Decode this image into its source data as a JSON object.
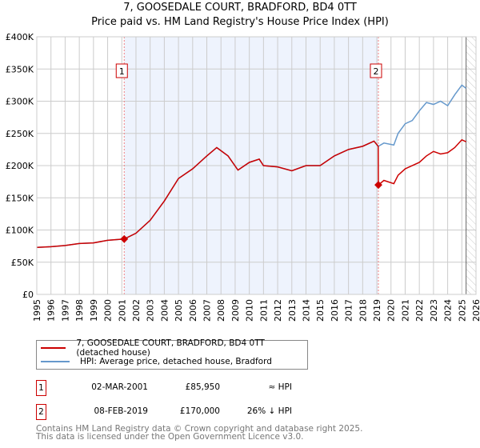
{
  "chart_data": {
    "type": "line",
    "title": "7, GOOSEDALE COURT, BRADFORD, BD4 0TT",
    "subtitle": "Price paid vs. HM Land Registry's House Price Index (HPI)",
    "xlim": [
      1995,
      2026
    ],
    "ylim": [
      0,
      400000
    ],
    "yticks": [
      0,
      50000,
      100000,
      150000,
      200000,
      250000,
      300000,
      350000,
      400000
    ],
    "ytick_labels": [
      "£0",
      "£50K",
      "£100K",
      "£150K",
      "£200K",
      "£250K",
      "£300K",
      "£350K",
      "£400K"
    ],
    "xticks": [
      "1995",
      "1996",
      "1997",
      "1998",
      "1999",
      "2000",
      "2001",
      "2002",
      "2003",
      "2004",
      "2005",
      "2006",
      "2007",
      "2008",
      "2009",
      "2010",
      "2011",
      "2012",
      "2013",
      "2014",
      "2015",
      "2016",
      "2017",
      "2018",
      "2019",
      "2020",
      "2021",
      "2022",
      "2023",
      "2024",
      "2025",
      "2026"
    ],
    "series": [
      {
        "name": "7, GOOSEDALE COURT, BRADFORD, BD4 0TT (detached house)",
        "color": "#cc0000",
        "x": [
          1995,
          1996,
          1997,
          1998,
          1999,
          2000,
          2001.17,
          2002,
          2003,
          2004,
          2005,
          2006,
          2007,
          2007.7,
          2008.5,
          2009.2,
          2010,
          2010.7,
          2011,
          2012,
          2013,
          2014,
          2015,
          2016,
          2017,
          2018,
          2018.8,
          2019.1,
          2019.11,
          2019.5,
          2020.2,
          2020.5,
          2021,
          2022,
          2022.5,
          2023,
          2023.5,
          2024,
          2024.5,
          2025,
          2025.3
        ],
        "y": [
          73000,
          74000,
          76000,
          79000,
          80000,
          84000,
          85950,
          95000,
          115000,
          145000,
          180000,
          195000,
          215000,
          228000,
          215000,
          193000,
          205000,
          210000,
          200000,
          198000,
          192000,
          200000,
          200000,
          215000,
          225000,
          230000,
          238000,
          230000,
          170000,
          177000,
          172000,
          185000,
          195000,
          205000,
          215000,
          222000,
          218000,
          220000,
          228000,
          240000,
          237000
        ]
      },
      {
        "name": "HPI: Average price, detached house, Bradford",
        "color": "#6699cc",
        "x": [
          1995,
          1996,
          1997,
          1998,
          1999,
          2000,
          2001.17,
          2002,
          2003,
          2004,
          2005,
          2006,
          2007,
          2007.7,
          2008.5,
          2009.2,
          2010,
          2010.7,
          2011,
          2012,
          2013,
          2014,
          2015,
          2016,
          2017,
          2018,
          2018.8,
          2019.1,
          2019.5,
          2020.2,
          2020.5,
          2021,
          2021.5,
          2022,
          2022.5,
          2023,
          2023.5,
          2024,
          2024.5,
          2025,
          2025.3
        ],
        "y": [
          73000,
          74000,
          76000,
          79000,
          80000,
          84000,
          86000,
          95000,
          115000,
          145000,
          180000,
          195000,
          215000,
          228000,
          215000,
          193000,
          205000,
          210000,
          200000,
          198000,
          192000,
          200000,
          200000,
          215000,
          225000,
          230000,
          238000,
          230000,
          235000,
          232000,
          250000,
          265000,
          270000,
          285000,
          298000,
          295000,
          300000,
          293000,
          310000,
          325000,
          320000
        ]
      }
    ],
    "sales": [
      {
        "label": "1",
        "x": 2001.17,
        "y": 85950
      },
      {
        "label": "2",
        "x": 2019.11,
        "y": 170000
      }
    ],
    "shaded_range": [
      2001.17,
      2019.11
    ],
    "hatched_from": 2025.3,
    "grid": true,
    "legend_placement": "bottom"
  },
  "transactions": [
    {
      "num": "1",
      "date": "02-MAR-2001",
      "price": "£85,950",
      "hpi": "≈ HPI"
    },
    {
      "num": "2",
      "date": "08-FEB-2019",
      "price": "£170,000",
      "hpi": "26% ↓ HPI"
    }
  ],
  "footer": [
    "Contains HM Land Registry data © Crown copyright and database right 2025.",
    "This data is licensed under the Open Government Licence v3.0."
  ]
}
